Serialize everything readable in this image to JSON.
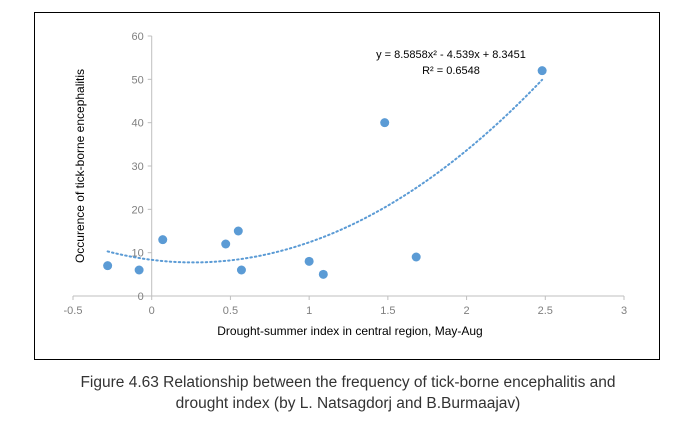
{
  "chart_data": {
    "type": "scatter",
    "title": "",
    "xlabel": "Drought-summer index in central region, May-Aug",
    "ylabel": "Occurence of tick-borne encephalitis",
    "xlim": [
      -0.5,
      3
    ],
    "ylim": [
      0,
      60
    ],
    "x_ticks": [
      -0.5,
      0,
      0.5,
      1,
      1.5,
      2,
      2.5,
      3
    ],
    "x_tick_labels": [
      "-0.5",
      "0",
      "0.5",
      "1",
      "1.5",
      "2",
      "2.5",
      "3"
    ],
    "y_ticks": [
      0,
      10,
      20,
      30,
      40,
      50,
      60
    ],
    "y_tick_labels": [
      "0",
      "10",
      "20",
      "30",
      "40",
      "50",
      "60"
    ],
    "grid": false,
    "legend": "none",
    "marker_color": "#5b9bd5",
    "series": [
      {
        "points": [
          {
            "x": -0.28,
            "y": 7
          },
          {
            "x": -0.08,
            "y": 6
          },
          {
            "x": 0.07,
            "y": 13
          },
          {
            "x": 0.47,
            "y": 12
          },
          {
            "x": 0.55,
            "y": 15
          },
          {
            "x": 0.57,
            "y": 6
          },
          {
            "x": 1.0,
            "y": 8
          },
          {
            "x": 1.09,
            "y": 5
          },
          {
            "x": 1.48,
            "y": 40
          },
          {
            "x": 1.68,
            "y": 9
          },
          {
            "x": 2.48,
            "y": 52
          }
        ]
      }
    ],
    "trendline": {
      "type": "polynomial",
      "coefficients": [
        8.5858,
        -4.539,
        8.3451
      ],
      "x_range": [
        -0.28,
        2.48
      ],
      "style": "dotted",
      "color": "#5b9bd5",
      "equation_label": "y = 8.5858x² - 4.539x + 8.3451",
      "r2_label": "R² = 0.6548"
    }
  },
  "caption": {
    "line1": "Figure 4.63 Relationship between the frequency of tick-borne encephalitis and",
    "line2": "drought index (by L. Natsagdorj and B.Burmaajav)"
  }
}
